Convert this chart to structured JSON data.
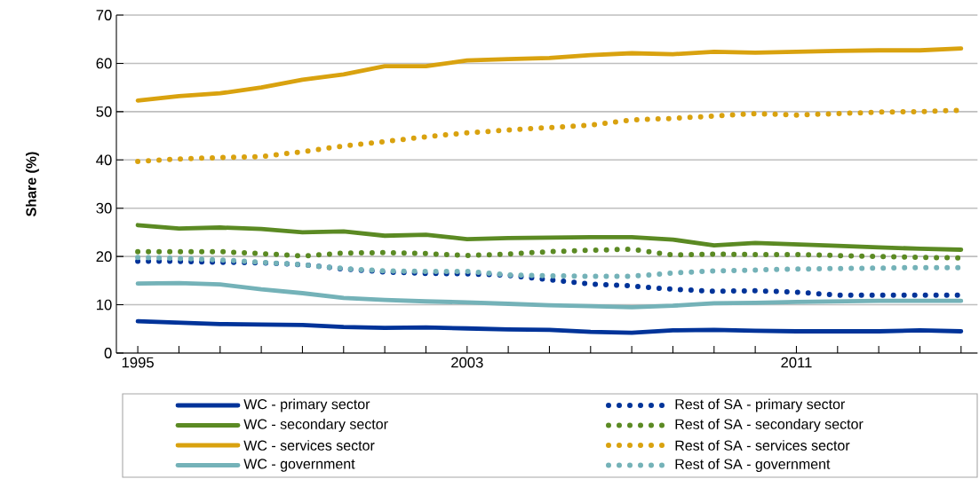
{
  "chart_data": {
    "type": "line",
    "ylabel": "Share (%)",
    "ylim": [
      0,
      70
    ],
    "yticks": [
      0,
      10,
      20,
      30,
      40,
      50,
      60,
      70
    ],
    "grid": "y",
    "legend": "bottom",
    "categories": [
      "1995",
      null,
      null,
      null,
      null,
      null,
      null,
      null,
      "2003",
      null,
      null,
      null,
      null,
      null,
      null,
      null,
      "2011",
      null,
      null,
      null,
      null
    ],
    "series": [
      {
        "name": "WC - primary sector",
        "color": "#003399",
        "line_style": "solid",
        "values": [
          6.6,
          6.3,
          6.0,
          5.9,
          5.8,
          5.4,
          5.2,
          5.3,
          5.1,
          4.9,
          4.8,
          4.4,
          4.2,
          4.7,
          4.8,
          4.6,
          4.5,
          4.5,
          4.5,
          4.7,
          4.5
        ]
      },
      {
        "name": "Rest of SA - primary sector",
        "color": "#003399",
        "line_style": "dotted",
        "values": [
          19.0,
          19.0,
          18.8,
          18.7,
          18.3,
          17.4,
          16.8,
          16.5,
          16.4,
          16.1,
          15.2,
          14.3,
          13.9,
          13.2,
          12.8,
          12.9,
          12.6,
          12.0,
          12.0,
          12.0,
          12.0
        ]
      },
      {
        "name": "WC - secondary sector",
        "color": "#5b8a23",
        "line_style": "solid",
        "values": [
          26.5,
          25.8,
          26.0,
          25.7,
          25.0,
          25.2,
          24.3,
          24.5,
          23.6,
          23.8,
          23.9,
          24.0,
          24.0,
          23.5,
          22.3,
          22.8,
          22.5,
          22.2,
          21.9,
          21.6,
          21.4
        ]
      },
      {
        "name": "Rest of SA - secondary sector",
        "color": "#5b8a23",
        "line_style": "dotted",
        "values": [
          21.0,
          21.0,
          21.0,
          20.6,
          20.1,
          20.7,
          20.8,
          20.6,
          20.2,
          20.5,
          21.0,
          21.3,
          21.5,
          20.3,
          20.5,
          20.4,
          20.4,
          20.2,
          20.0,
          19.8,
          19.7
        ]
      },
      {
        "name": "WC - services sector",
        "color": "#d9a20f",
        "line_style": "solid",
        "values": [
          52.3,
          53.2,
          53.8,
          55.0,
          56.6,
          57.7,
          59.4,
          59.4,
          60.6,
          60.9,
          61.1,
          61.7,
          62.1,
          61.9,
          62.4,
          62.2,
          62.4,
          62.6,
          62.7,
          62.7,
          63.1
        ]
      },
      {
        "name": "Rest of SA - services sector",
        "color": "#d9a20f",
        "line_style": "dotted",
        "values": [
          39.7,
          40.2,
          40.5,
          40.7,
          41.7,
          42.9,
          43.8,
          44.8,
          45.6,
          46.2,
          46.7,
          47.2,
          48.3,
          48.6,
          49.1,
          49.6,
          49.3,
          49.6,
          49.9,
          50.0,
          50.3
        ]
      },
      {
        "name": "WC - government",
        "color": "#74b2b8",
        "line_style": "solid",
        "values": [
          14.4,
          14.5,
          14.2,
          13.2,
          12.4,
          11.4,
          11.0,
          10.7,
          10.5,
          10.2,
          9.9,
          9.7,
          9.5,
          9.8,
          10.3,
          10.4,
          10.6,
          10.7,
          10.8,
          10.8,
          10.8
        ]
      },
      {
        "name": "Rest of SA - government",
        "color": "#74b2b8",
        "line_style": "dotted",
        "values": [
          19.8,
          19.6,
          19.3,
          18.8,
          18.3,
          17.5,
          17.0,
          16.9,
          16.9,
          16.2,
          16.0,
          15.9,
          15.9,
          16.6,
          17.0,
          17.2,
          17.4,
          17.5,
          17.6,
          17.7,
          17.7
        ]
      }
    ]
  }
}
